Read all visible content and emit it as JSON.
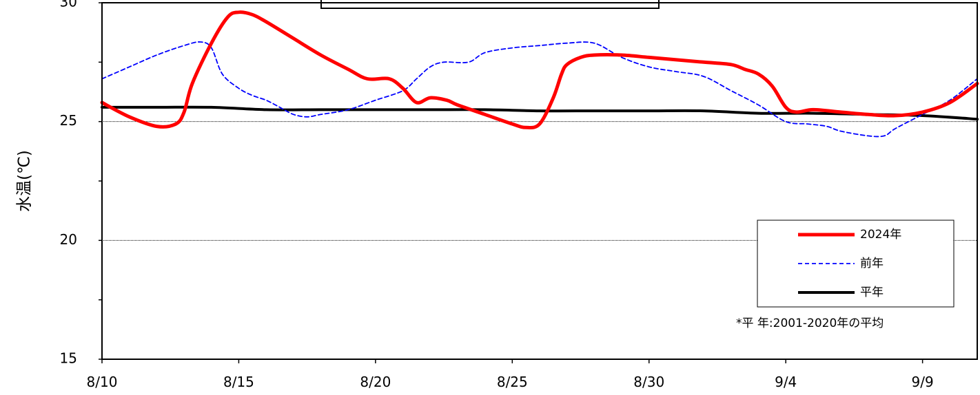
{
  "chart_data": {
    "type": "line",
    "title": "",
    "xlabel": "",
    "ylabel": "水温(℃)",
    "x_start": "8/10",
    "x_tick_labels": [
      "8/10",
      "8/15",
      "8/20",
      "8/25",
      "8/30",
      "9/4",
      "9/9"
    ],
    "x_range_days": [
      0,
      32
    ],
    "ylim": [
      15,
      30
    ],
    "y_tick_labels": [
      "15",
      "20",
      "25",
      "30"
    ],
    "y_label_ticks": [
      15,
      20,
      25,
      30
    ],
    "y_minor_ticks": [
      17.5,
      22.5,
      27.5
    ],
    "gridlines_y": [
      20,
      25
    ],
    "legend_position": "bottom-right",
    "note": "*平 年:2001-2020年の平均",
    "series": [
      {
        "name": "2024年",
        "style": "solid-thick",
        "color": "#ff0000",
        "points": [
          [
            0,
            25.8
          ],
          [
            1,
            25.2
          ],
          [
            2,
            24.8
          ],
          [
            2.7,
            24.9
          ],
          [
            3,
            25.4
          ],
          [
            3.3,
            26.6
          ],
          [
            4,
            28.3
          ],
          [
            4.6,
            29.4
          ],
          [
            5,
            29.6
          ],
          [
            5.5,
            29.5
          ],
          [
            6,
            29.2
          ],
          [
            7,
            28.5
          ],
          [
            8,
            27.8
          ],
          [
            9,
            27.2
          ],
          [
            9.7,
            26.8
          ],
          [
            10.5,
            26.8
          ],
          [
            11,
            26.4
          ],
          [
            11.5,
            25.8
          ],
          [
            12,
            26.0
          ],
          [
            12.6,
            25.9
          ],
          [
            13,
            25.7
          ],
          [
            14,
            25.3
          ],
          [
            15,
            24.9
          ],
          [
            15.5,
            24.75
          ],
          [
            16,
            24.9
          ],
          [
            16.5,
            26.0
          ],
          [
            16.8,
            27.0
          ],
          [
            17,
            27.4
          ],
          [
            17.5,
            27.7
          ],
          [
            18,
            27.8
          ],
          [
            19,
            27.8
          ],
          [
            20,
            27.7
          ],
          [
            21,
            27.6
          ],
          [
            22,
            27.5
          ],
          [
            23,
            27.4
          ],
          [
            23.5,
            27.2
          ],
          [
            24,
            27.0
          ],
          [
            24.5,
            26.5
          ],
          [
            25,
            25.6
          ],
          [
            25.4,
            25.4
          ],
          [
            26,
            25.5
          ],
          [
            27,
            25.4
          ],
          [
            28,
            25.3
          ],
          [
            29,
            25.25
          ],
          [
            30,
            25.4
          ],
          [
            31,
            25.8
          ],
          [
            32,
            26.6
          ]
        ]
      },
      {
        "name": "前年",
        "style": "dashed",
        "color": "#0000ff",
        "points": [
          [
            0,
            26.8
          ],
          [
            1,
            27.3
          ],
          [
            2,
            27.8
          ],
          [
            3,
            28.2
          ],
          [
            3.6,
            28.35
          ],
          [
            4,
            28.1
          ],
          [
            4.4,
            27.0
          ],
          [
            5,
            26.4
          ],
          [
            5.5,
            26.1
          ],
          [
            6,
            25.9
          ],
          [
            6.5,
            25.6
          ],
          [
            7,
            25.3
          ],
          [
            7.5,
            25.2
          ],
          [
            8,
            25.3
          ],
          [
            9,
            25.5
          ],
          [
            10,
            25.9
          ],
          [
            11,
            26.3
          ],
          [
            11.5,
            26.8
          ],
          [
            12,
            27.3
          ],
          [
            12.5,
            27.5
          ],
          [
            13.4,
            27.5
          ],
          [
            14,
            27.9
          ],
          [
            15,
            28.1
          ],
          [
            16,
            28.2
          ],
          [
            17,
            28.3
          ],
          [
            18,
            28.3
          ],
          [
            19,
            27.7
          ],
          [
            20,
            27.3
          ],
          [
            21,
            27.1
          ],
          [
            22,
            26.9
          ],
          [
            23,
            26.3
          ],
          [
            24,
            25.7
          ],
          [
            25,
            25.0
          ],
          [
            25.8,
            24.9
          ],
          [
            26.5,
            24.8
          ],
          [
            27,
            24.6
          ],
          [
            28,
            24.4
          ],
          [
            28.6,
            24.4
          ],
          [
            29,
            24.7
          ],
          [
            30,
            25.3
          ],
          [
            31,
            25.9
          ],
          [
            32,
            26.8
          ]
        ]
      },
      {
        "name": "平年",
        "style": "solid",
        "color": "#000000",
        "points": [
          [
            0,
            25.6
          ],
          [
            2,
            25.6
          ],
          [
            4,
            25.6
          ],
          [
            6,
            25.5
          ],
          [
            8,
            25.5
          ],
          [
            10,
            25.5
          ],
          [
            12,
            25.5
          ],
          [
            14,
            25.5
          ],
          [
            16,
            25.45
          ],
          [
            18,
            25.45
          ],
          [
            20,
            25.45
          ],
          [
            22,
            25.45
          ],
          [
            24,
            25.35
          ],
          [
            26,
            25.35
          ],
          [
            28,
            25.3
          ],
          [
            30,
            25.25
          ],
          [
            32,
            25.1
          ]
        ]
      }
    ]
  }
}
